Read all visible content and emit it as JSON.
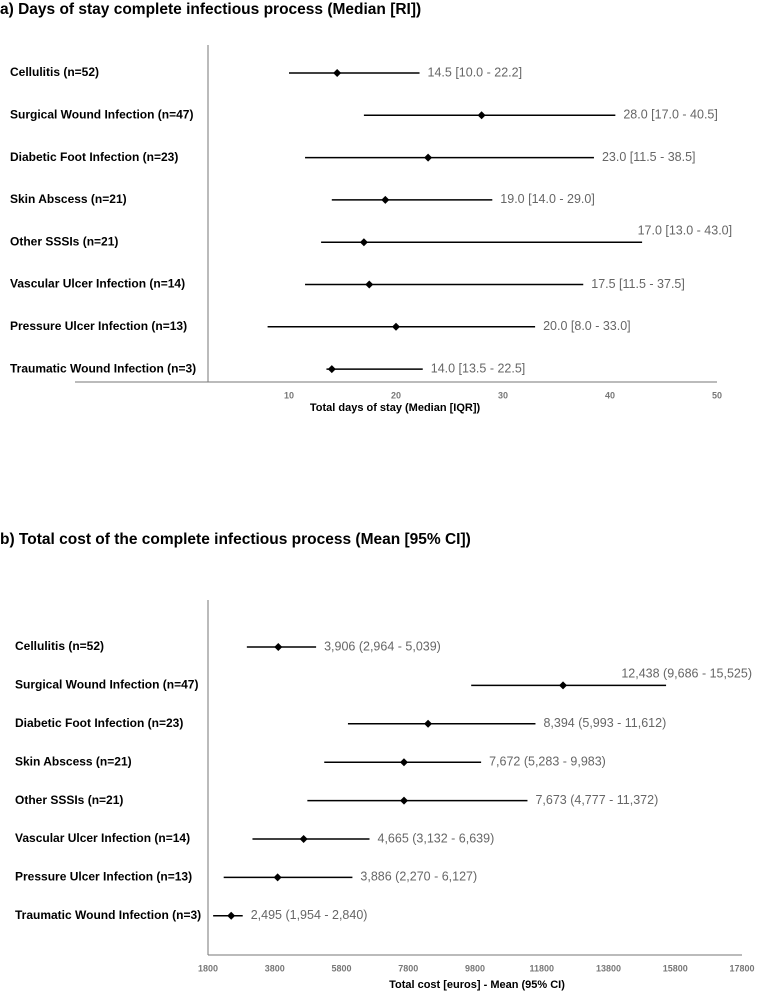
{
  "chart_data": [
    {
      "type": "forest",
      "title": "a) Days of stay complete infectious process (Median [RI])",
      "xlabel": "Total days of stay (Median [IQR])",
      "categories": [
        "Cellulitis (n=52)",
        "Surgical Wound Infection (n=47)",
        "Diabetic Foot Infection (n=23)",
        "Skin Abscess (n=21)",
        "Other SSSIs (n=21)",
        "Vascular Ulcer Infection (n=14)",
        "Pressure Ulcer Infection (n=13)",
        "Traumatic Wound Infection (n=3)"
      ],
      "values": [
        14.5,
        28.0,
        23.0,
        19.0,
        17.0,
        17.5,
        20.0,
        14.0
      ],
      "lower": [
        10.0,
        17.0,
        11.5,
        14.0,
        13.0,
        11.5,
        8.0,
        13.5
      ],
      "upper": [
        22.2,
        40.5,
        38.5,
        29.0,
        43.0,
        37.5,
        33.0,
        22.5
      ],
      "value_labels": [
        "14.5 [10.0 - 22.2]",
        "28.0 [17.0 - 40.5]",
        "23.0 [11.5 - 38.5]",
        "19.0 [14.0 - 29.0]",
        "17.0 [13.0 - 43.0]",
        "17.5 [11.5 - 37.5]",
        "20.0 [8.0 - 33.0]",
        "14.0 [13.5 - 22.5]"
      ],
      "xlim": [
        -10,
        50
      ],
      "xticks": [
        10,
        20,
        30,
        40,
        50
      ],
      "color": "#000000"
    },
    {
      "type": "forest",
      "title": "b) Total cost of the complete infectious process (Mean [95% CI])",
      "xlabel": "Total cost [euros]  - Mean (95% CI)",
      "categories": [
        "Cellulitis (n=52)",
        "Surgical Wound Infection (n=47)",
        "Diabetic Foot Infection (n=23)",
        "Skin Abscess (n=21)",
        "Other SSSIs (n=21)",
        "Vascular Ulcer Infection (n=14)",
        "Pressure Ulcer Infection (n=13)",
        "Traumatic Wound Infection (n=3)"
      ],
      "values": [
        3906,
        12438,
        8394,
        7672,
        7673,
        4665,
        3886,
        2495
      ],
      "lower": [
        2964,
        9686,
        5993,
        5283,
        4777,
        3132,
        2270,
        1954
      ],
      "upper": [
        5039,
        15525,
        11612,
        9983,
        11372,
        6639,
        6127,
        2840
      ],
      "value_labels": [
        "3,906 (2,964 - 5,039)",
        "12,438 (9,686 - 15,525)",
        "8,394 (5,993 - 11,612)",
        "7,672 (5,283 - 9,983)",
        "7,673 (4,777 - 11,372)",
        "4,665 (3,132 - 6,639)",
        "3,886 (2,270 - 6,127)",
        "2,495 (1,954 - 2,840)"
      ],
      "xlim": [
        1800,
        17800
      ],
      "xticks": [
        1800,
        3800,
        5800,
        7800,
        9800,
        11800,
        13800,
        15800,
        17800
      ],
      "color": "#000000"
    }
  ]
}
